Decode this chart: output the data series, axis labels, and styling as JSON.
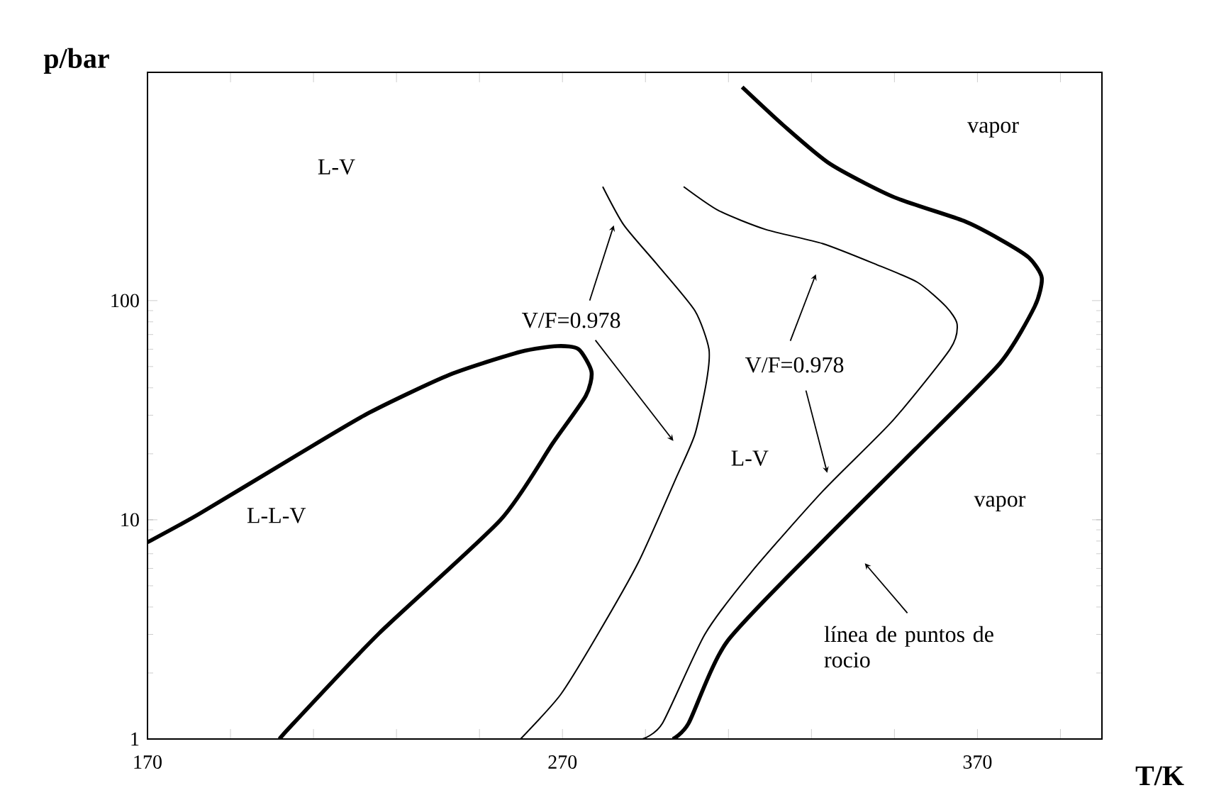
{
  "chart_data": {
    "type": "line",
    "xlabel": "T/K",
    "ylabel": "p/bar",
    "log": "y",
    "grid": false,
    "marker": "none",
    "line_style": "solid",
    "xlim": [
      170,
      400
    ],
    "ylim": [
      1,
      1100
    ],
    "xticks": [
      170,
      {
        "value": 190,
        "label": null
      },
      {
        "value": 210,
        "label": null
      },
      {
        "value": 230,
        "label": null
      },
      {
        "value": 250,
        "label": null
      },
      270,
      {
        "value": 290,
        "label": null
      },
      {
        "value": 310,
        "label": null
      },
      {
        "value": 330,
        "label": null
      },
      {
        "value": 350,
        "label": null
      },
      370,
      {
        "value": 390,
        "label": null
      }
    ],
    "yticks": [
      1,
      10,
      100
    ],
    "series": [
      {
        "color": "#000000",
        "x": [
          170,
          182.3,
          205.2,
          223.3,
          242.8,
          259.9,
          268.8,
          273.9,
          277,
          275.6,
          267.7,
          255.1,
          225.7,
          205.2,
          201.8
        ],
        "values": [
          7.9,
          10.6,
          19.3,
          30.7,
          45.9,
          58.4,
          62,
          60,
          47.3,
          36.7,
          22.4,
          10,
          3.02,
          1.18,
          1
        ]
      },
      {
        "color": "#000000",
        "x": [
          279.7,
          284.8,
          292.7,
          301.9,
          305.3,
          304.7,
          301.9,
          297.5,
          288.3,
          278.0,
          269.5,
          259.9
        ],
        "values": [
          331,
          221,
          147,
          90,
          60,
          42.7,
          24.5,
          15.7,
          6.4,
          2.89,
          1.59,
          1
        ]
      },
      {
        "color": "#000000",
        "x": [
          299.2,
          307.7,
          319.0,
          332.7,
          345.3,
          355.6,
          362.4,
          365.1,
          363.4,
          349.7,
          332.7,
          315.6,
          304.3,
          294.1,
          289.3
        ],
        "values": [
          331,
          257,
          211,
          182,
          147,
          121,
          94,
          78,
          60,
          28.5,
          13.5,
          5.8,
          3.0,
          1.18,
          1
        ]
      },
      {
        "color": "#000000",
        "x": [
          313.3,
          323.3,
          334.5,
          349.6,
          366.7,
          375.5,
          382.4,
          385.5,
          383.8,
          375.5,
          355.0,
          332.5,
          309.6,
          300.4,
          296.6
        ],
        "values": [
          942,
          629,
          420,
          298,
          231,
          190,
          157,
          127,
          94,
          52,
          21,
          7.9,
          2.77,
          1.18,
          1
        ]
      }
    ],
    "annotations": [
      "L-V",
      "L-L-V",
      "V/F=0.978",
      "V/F=0.978",
      "L-V",
      "vapor",
      "vapor",
      "línea de puntos de rocio"
    ]
  }
}
